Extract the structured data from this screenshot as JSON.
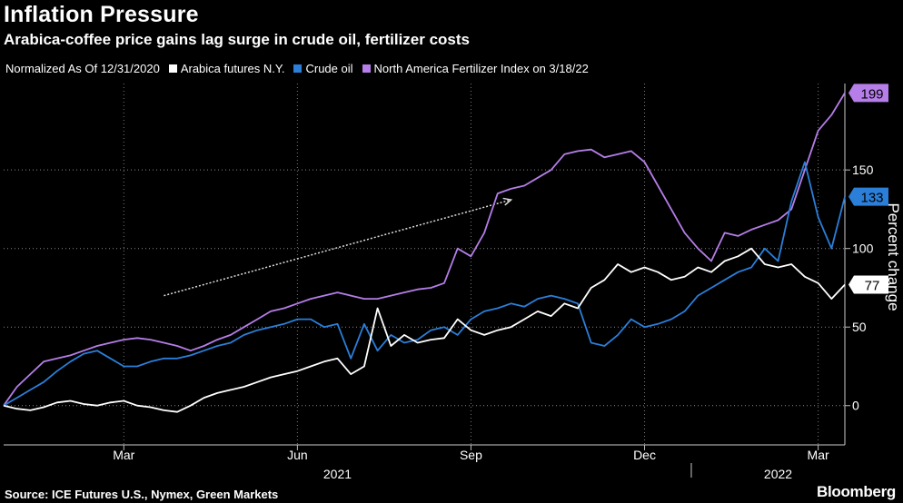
{
  "chart_data": {
    "type": "line",
    "title": "Inflation Pressure",
    "subtitle": "Arabica-coffee price gains lag surge in crude oil, fertilizer costs",
    "legend_note": "Normalized As Of 12/31/2020",
    "ylabel": "Percent change",
    "ylim": [
      -25,
      205
    ],
    "yticks": [
      0,
      50,
      100,
      150
    ],
    "x_range": [
      0,
      63
    ],
    "x_months": [
      {
        "label": "Mar",
        "x": 9
      },
      {
        "label": "Jun",
        "x": 22
      },
      {
        "label": "Sep",
        "x": 35
      },
      {
        "label": "Dec",
        "x": 48
      },
      {
        "label": "Mar",
        "x": 61
      }
    ],
    "x_years": [
      {
        "label": "2021",
        "x": 25
      },
      {
        "label": "2022",
        "x": 58
      }
    ],
    "year_divider_x": 51.5,
    "series": [
      {
        "name": "Arabica futures N.Y.",
        "color": "#ffffff",
        "end_label": "77",
        "x": [
          0,
          1,
          2,
          3,
          4,
          5,
          6,
          7,
          8,
          9,
          10,
          11,
          12,
          13,
          14,
          15,
          16,
          17,
          18,
          19,
          20,
          21,
          22,
          23,
          24,
          25,
          26,
          27,
          28,
          29,
          30,
          31,
          32,
          33,
          34,
          35,
          36,
          37,
          38,
          39,
          40,
          41,
          42,
          43,
          44,
          45,
          46,
          47,
          48,
          49,
          50,
          51,
          52,
          53,
          54,
          55,
          56,
          57,
          58,
          59,
          60,
          61,
          62,
          63
        ],
        "values": [
          0,
          -2,
          -3,
          -1,
          2,
          3,
          1,
          0,
          2,
          3,
          0,
          -1,
          -3,
          -4,
          0,
          5,
          8,
          10,
          12,
          15,
          18,
          20,
          22,
          25,
          28,
          30,
          20,
          25,
          62,
          38,
          45,
          40,
          42,
          43,
          55,
          48,
          45,
          48,
          50,
          55,
          60,
          57,
          65,
          62,
          75,
          80,
          90,
          85,
          88,
          85,
          80,
          82,
          88,
          85,
          92,
          95,
          100,
          90,
          88,
          90,
          82,
          78,
          68,
          77
        ]
      },
      {
        "name": "Crude oil",
        "color": "#2b7fd9",
        "end_label": "133",
        "x": [
          0,
          1,
          2,
          3,
          4,
          5,
          6,
          7,
          8,
          9,
          10,
          11,
          12,
          13,
          14,
          15,
          16,
          17,
          18,
          19,
          20,
          21,
          22,
          23,
          24,
          25,
          26,
          27,
          28,
          29,
          30,
          31,
          32,
          33,
          34,
          35,
          36,
          37,
          38,
          39,
          40,
          41,
          42,
          43,
          44,
          45,
          46,
          47,
          48,
          49,
          50,
          51,
          52,
          53,
          54,
          55,
          56,
          57,
          58,
          59,
          60,
          61,
          62,
          63
        ],
        "values": [
          0,
          5,
          10,
          15,
          22,
          28,
          33,
          35,
          30,
          25,
          25,
          28,
          30,
          30,
          32,
          35,
          38,
          40,
          45,
          48,
          50,
          52,
          55,
          55,
          50,
          52,
          30,
          52,
          35,
          45,
          40,
          42,
          48,
          50,
          45,
          55,
          60,
          62,
          65,
          63,
          68,
          70,
          68,
          65,
          40,
          38,
          45,
          55,
          50,
          52,
          55,
          60,
          70,
          75,
          80,
          85,
          88,
          100,
          92,
          130,
          155,
          120,
          100,
          133
        ]
      },
      {
        "name": "North America Fertilizer Index on 3/18/22",
        "color": "#b57ee8",
        "end_label": "199",
        "x": [
          0,
          1,
          2,
          3,
          4,
          5,
          6,
          7,
          8,
          9,
          10,
          11,
          12,
          13,
          14,
          15,
          16,
          17,
          18,
          19,
          20,
          21,
          22,
          23,
          24,
          25,
          26,
          27,
          28,
          29,
          30,
          31,
          32,
          33,
          34,
          35,
          36,
          37,
          38,
          39,
          40,
          41,
          42,
          43,
          44,
          45,
          46,
          47,
          48,
          49,
          50,
          51,
          52,
          53,
          54,
          55,
          56,
          57,
          58,
          59,
          60,
          61,
          62,
          63
        ],
        "values": [
          0,
          12,
          20,
          28,
          30,
          32,
          35,
          38,
          40,
          42,
          43,
          42,
          40,
          38,
          35,
          38,
          42,
          45,
          50,
          55,
          60,
          62,
          65,
          68,
          70,
          72,
          70,
          68,
          68,
          70,
          72,
          74,
          75,
          78,
          100,
          95,
          110,
          135,
          138,
          140,
          145,
          150,
          160,
          162,
          163,
          158,
          160,
          162,
          155,
          140,
          125,
          110,
          100,
          92,
          110,
          108,
          112,
          115,
          118,
          125,
          150,
          175,
          185,
          199
        ]
      }
    ],
    "annotation_arrow": {
      "from": [
        12,
        70
      ],
      "to": [
        38,
        131
      ]
    },
    "source": "Source: ICE Futures U.S., Nymex, Green Markets",
    "brand": "Bloomberg"
  }
}
